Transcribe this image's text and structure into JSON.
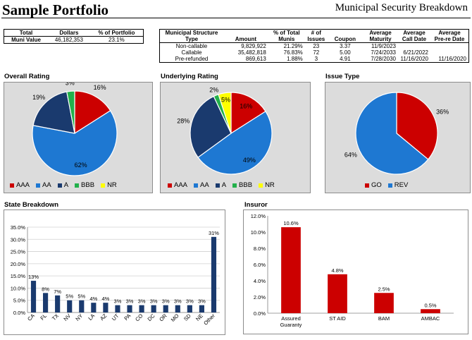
{
  "header": {
    "title": "Sample Portfolio",
    "subtitle": "Municipal Security Breakdown"
  },
  "total": {
    "headers": [
      "Total",
      "Dollars",
      "% of Portfolio"
    ],
    "row_label": "Muni Value",
    "dollars": "46,182,353",
    "pct": "23.1%"
  },
  "structure": {
    "headers": [
      "Municipal Structure Type",
      "Amount",
      "% of Total Munis",
      "# of Issues",
      "Coupon",
      "Average Maturity",
      "Average Call Date",
      "Average Pre-re Date"
    ],
    "rows": [
      [
        "Non-callable",
        "9,829,922",
        "21.29%",
        "23",
        "3.37",
        "11/9/2023",
        "",
        ""
      ],
      [
        "Callable",
        "35,482,818",
        "76.83%",
        "72",
        "5.00",
        "7/24/2033",
        "6/21/2022",
        ""
      ],
      [
        "Pre-refunded",
        "869,613",
        "1.88%",
        "3",
        "4.91",
        "7/28/2030",
        "11/16/2020",
        "11/16/2020"
      ]
    ]
  },
  "colors": {
    "AAA": "#cc0000",
    "AA": "#1e78d2",
    "A": "#1a3a6e",
    "BBB": "#22b04b",
    "NR": "#ffff00",
    "GO": "#cc0000",
    "REV": "#1e78d2",
    "bar_state": "#1a3a6e",
    "bar_insuror": "#cc0000"
  },
  "chart_data": [
    {
      "type": "pie",
      "title": "Overall Rating",
      "slices": [
        {
          "label": "AAA",
          "value": 16,
          "display": "16%"
        },
        {
          "label": "AA",
          "value": 62,
          "display": "62%"
        },
        {
          "label": "A",
          "value": 19,
          "display": "19%"
        },
        {
          "label": "BBB",
          "value": 3,
          "display": "3%"
        },
        {
          "label": "NR",
          "value": 0,
          "display": ""
        }
      ],
      "legend": [
        "AAA",
        "AA",
        "A",
        "BBB",
        "NR"
      ],
      "legend_position": "bottom"
    },
    {
      "type": "pie",
      "title": "Underlying Rating",
      "slices": [
        {
          "label": "AAA",
          "value": 16,
          "display": "16%"
        },
        {
          "label": "AA",
          "value": 49,
          "display": "49%"
        },
        {
          "label": "A",
          "value": 28,
          "display": "28%"
        },
        {
          "label": "BBB",
          "value": 2,
          "display": "2%"
        },
        {
          "label": "NR",
          "value": 5,
          "display": "5%"
        }
      ],
      "legend": [
        "AAA",
        "AA",
        "A",
        "BBB",
        "NR"
      ],
      "legend_position": "bottom"
    },
    {
      "type": "pie",
      "title": "Issue Type",
      "slices": [
        {
          "label": "GO",
          "value": 36,
          "display": "36%"
        },
        {
          "label": "REV",
          "value": 64,
          "display": "64%"
        }
      ],
      "legend": [
        "GO",
        "REV"
      ],
      "legend_position": "bottom"
    },
    {
      "type": "bar",
      "title": "State Breakdown",
      "categories": [
        "CA",
        "FL",
        "TX",
        "NV",
        "NY",
        "LA",
        "AZ",
        "UT",
        "PA",
        "CO",
        "DC",
        "OR",
        "MO",
        "SD",
        "NE",
        "Other"
      ],
      "values": [
        13,
        8,
        7,
        5,
        5,
        4,
        4,
        3,
        3,
        3,
        3,
        3,
        3,
        3,
        3,
        31
      ],
      "labels": [
        "13%",
        "8%",
        "7%",
        "5%",
        "5%",
        "4%",
        "4%",
        "3%",
        "3%",
        "3%",
        "3%",
        "3%",
        "3%",
        "3%",
        "3%",
        "31%"
      ],
      "yticks": [
        "0.0%",
        "5.0%",
        "10.0%",
        "15.0%",
        "20.0%",
        "25.0%",
        "30.0%",
        "35.0%"
      ],
      "ylim": [
        0,
        35
      ],
      "grid": true
    },
    {
      "type": "bar",
      "title": "Insuror",
      "categories": [
        "Assured Guaranty",
        "ST AID",
        "BAM",
        "AMBAC"
      ],
      "category_lines": [
        [
          "Assured",
          "Guaranty"
        ],
        [
          "ST AID"
        ],
        [
          "BAM"
        ],
        [
          "AMBAC"
        ]
      ],
      "values": [
        10.6,
        4.8,
        2.5,
        0.5
      ],
      "labels": [
        "10.6%",
        "4.8%",
        "2.5%",
        "0.5%"
      ],
      "yticks": [
        "0.0%",
        "2.0%",
        "4.0%",
        "6.0%",
        "8.0%",
        "10.0%",
        "12.0%"
      ],
      "ylim": [
        0,
        12
      ],
      "grid": false
    }
  ]
}
